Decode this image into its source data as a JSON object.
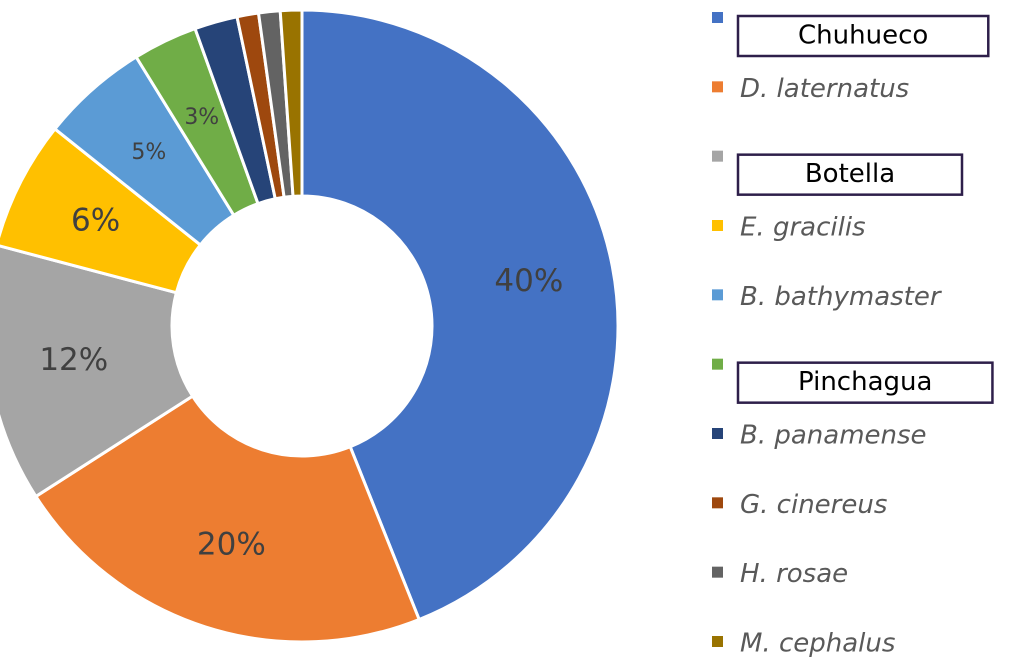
{
  "chart_data": {
    "type": "pie",
    "donut": true,
    "categories": [
      "Chuhueco",
      "D. laternatus",
      "Botella",
      "E. gracilis",
      "B. bathymaster",
      "Pinchagua",
      "B. panamense",
      "G. cinereus",
      "H. rosae",
      "M. cephalus"
    ],
    "values": [
      40,
      20,
      12,
      6,
      5,
      3,
      2,
      1,
      1,
      1
    ],
    "value_labels": [
      "40%",
      "20%",
      "12%",
      "6%",
      "5%",
      "3%",
      null,
      null,
      null,
      null
    ],
    "colors": [
      "#4472c4",
      "#ed7d31",
      "#a5a5a5",
      "#ffc000",
      "#5b9bd5",
      "#70ad47",
      "#264478",
      "#9e480e",
      "#636363",
      "#997300"
    ],
    "legend_boxed": [
      true,
      false,
      true,
      false,
      false,
      true,
      false,
      false,
      false,
      false
    ],
    "legend": "right"
  }
}
